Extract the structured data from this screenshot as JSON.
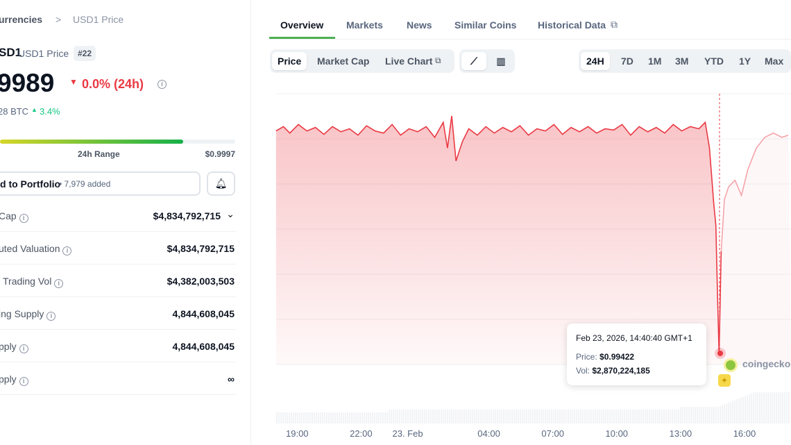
{
  "breadcrumb": {
    "parent": "urrencies",
    "separator": ">",
    "current": "USD1 Price"
  },
  "coin": {
    "symbol": "SD1",
    "name": "USD1 Price",
    "rank": "#22",
    "price": "9989",
    "change": "0.0% (24h)",
    "btc_price": "28 BTC",
    "btc_change": "3.4%",
    "range_label": "24h Range",
    "range_high": "$0.9997",
    "range_fill_pct": 78
  },
  "portfolio": {
    "label": "d to Portfolio",
    "count": "7,979 added"
  },
  "stats": [
    {
      "label": "Cap",
      "value": "$4,834,792,715"
    },
    {
      "label": "uted Valuation",
      "value": "$4,834,792,715"
    },
    {
      "label": "Trading Vol",
      "value": "$4,382,003,503"
    },
    {
      "label": "ing Supply",
      "value": "4,844,608,045"
    },
    {
      "label": "pply",
      "value": "4,844,608,045"
    },
    {
      "label": "pply",
      "value": "∞"
    }
  ],
  "tabs": [
    "Overview",
    "Markets",
    "News",
    "Similar Coins",
    "Historical Data"
  ],
  "chart_types": [
    "Price",
    "Market Cap",
    "Live Chart"
  ],
  "ranges": [
    "24H",
    "7D",
    "1M",
    "3M",
    "YTD",
    "1Y",
    "Max"
  ],
  "colors": {
    "red": "#ea3943",
    "green": "#16c784",
    "active_tab": "#4caf50"
  },
  "tooltip": {
    "date": "Feb 23, 2026, 14:40:40 GMT+1",
    "price_label": "Price:",
    "price": "$0.99422",
    "vol_label": "Vol:",
    "vol": "$2,870,224,185"
  },
  "watermark": "coingecko",
  "chart_data": {
    "type": "line",
    "xlabel": "",
    "ylabel": "",
    "x_ticks": [
      "19:00",
      "22:00",
      "23. Feb",
      "04:00",
      "07:00",
      "10:00",
      "13:00",
      "16:00"
    ],
    "x_tick_hours": [
      19,
      22,
      24,
      28,
      31,
      34,
      37,
      40
    ],
    "ylim": [
      0.9941,
      0.99995
    ],
    "hours": [
      17.95,
      18.3,
      18.6,
      19,
      19.4,
      19.8,
      20.2,
      20.6,
      21,
      21.4,
      21.8,
      22.2,
      22.6,
      23,
      23.4,
      23.8,
      24.2,
      24.6,
      25,
      25.4,
      25.8,
      26,
      26.2,
      26.4,
      26.7,
      27,
      27.4,
      27.8,
      28.2,
      28.6,
      29,
      29.4,
      29.8,
      30.2,
      30.6,
      31,
      31.4,
      31.8,
      32.2,
      32.6,
      33,
      33.4,
      33.8,
      34.2,
      34.6,
      35,
      35.4,
      35.8,
      36.2,
      36.6,
      37,
      37.4,
      37.8,
      38.1,
      38.3,
      38.5,
      38.6,
      38.68,
      38.75,
      38.85,
      39,
      39.2,
      39.5,
      39.8,
      40.1,
      40.5,
      40.9,
      41.3,
      41.7,
      42
    ],
    "prices": [
      0.9994,
      0.9995,
      0.99935,
      0.99955,
      0.9994,
      0.99948,
      0.99932,
      0.9995,
      0.99938,
      0.99945,
      0.9993,
      0.99952,
      0.9994,
      0.99935,
      0.99955,
      0.9993,
      0.99945,
      0.99938,
      0.9995,
      0.99925,
      0.9996,
      0.999,
      0.99975,
      0.9987,
      0.99915,
      0.99945,
      0.9993,
      0.9995,
      0.99935,
      0.99948,
      0.99938,
      0.99952,
      0.9993,
      0.99945,
      0.9994,
      0.99955,
      0.99932,
      0.99948,
      0.99938,
      0.9995,
      0.99935,
      0.99945,
      0.99942,
      0.99955,
      0.9993,
      0.9995,
      0.99938,
      0.99948,
      0.99935,
      0.99955,
      0.9994,
      0.9995,
      0.99945,
      0.9996,
      0.999,
      0.9977,
      0.9972,
      0.9955,
      0.99422,
      0.9966,
      0.9978,
      0.9981,
      0.99825,
      0.9979,
      0.9985,
      0.999,
      0.99925,
      0.99935,
      0.99925,
      0.9993
    ]
  }
}
